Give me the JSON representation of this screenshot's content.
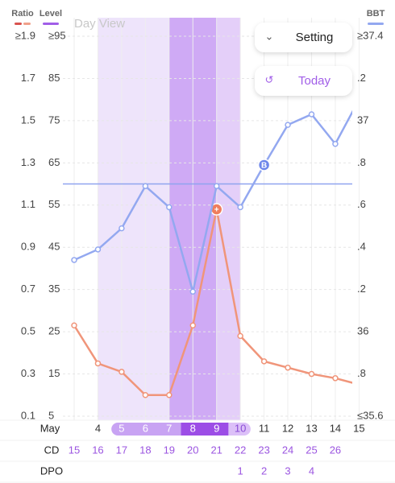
{
  "chart_data": {
    "type": "line",
    "title": "Day View",
    "legend": [
      {
        "name": "Ratio",
        "colors": [
          "#d9534f",
          "#f0a08a"
        ]
      },
      {
        "name": "Level",
        "colors": [
          "#a15ee8"
        ]
      },
      {
        "name": "BBT",
        "colors": [
          "#93a8f0"
        ]
      }
    ],
    "buttons": [
      "Setting",
      "Today"
    ],
    "month": "May",
    "categories": [
      null,
      "4",
      "5",
      "6",
      "7",
      "8",
      "9",
      "10",
      "11",
      "12",
      "13",
      "14",
      "15"
    ],
    "row_labels": [
      "CD",
      "DPO"
    ],
    "cd": [
      15,
      16,
      17,
      18,
      19,
      20,
      21,
      22,
      23,
      24,
      25,
      26,
      null
    ],
    "dpo": [
      null,
      null,
      null,
      null,
      null,
      null,
      null,
      1,
      2,
      3,
      4,
      null,
      null
    ],
    "ylim": [
      0.1,
      1.9
    ],
    "yticks": [
      {
        "value": 1.9,
        "label": "≥1.9"
      },
      1.7,
      1.5,
      1.3,
      1.1,
      0.9,
      0.7,
      0.5,
      0.3,
      0.1
    ],
    "level_lim": [
      5,
      95
    ],
    "level_ticks": [
      {
        "value": 95,
        "label": "≥95"
      },
      85,
      75,
      65,
      55,
      45,
      35,
      25,
      15,
      5
    ],
    "y2lim": [
      35.6,
      37.4
    ],
    "y2ticks": [
      {
        "value": 37.4,
        "label": "≥37.4"
      },
      {
        "value": 37.2,
        "label": ".2"
      },
      37,
      {
        "value": 36.8,
        "label": ".8"
      },
      {
        "value": 36.6,
        "label": ".6"
      },
      {
        "value": 36.4,
        "label": ".4"
      },
      {
        "value": 36.2,
        "label": ".2"
      },
      36,
      {
        "value": 35.8,
        "label": ".8"
      },
      {
        "value": 35.6,
        "label": "≤35.6"
      }
    ],
    "coverline": 36.7,
    "series": [
      {
        "color": "#f0957a",
        "axis": "level",
        "values": [
          26.5,
          17.5,
          15.5,
          10,
          10,
          26.5,
          54,
          24,
          18,
          16.5,
          15,
          14,
          12.5
        ]
      },
      {
        "color": "#93a8f0",
        "axis": "y2",
        "values": [
          36.34,
          36.39,
          36.49,
          36.69,
          36.59,
          36.19,
          36.69,
          36.59,
          36.79,
          36.98,
          37.03,
          36.89,
          37.1
        ]
      }
    ]
  }
}
